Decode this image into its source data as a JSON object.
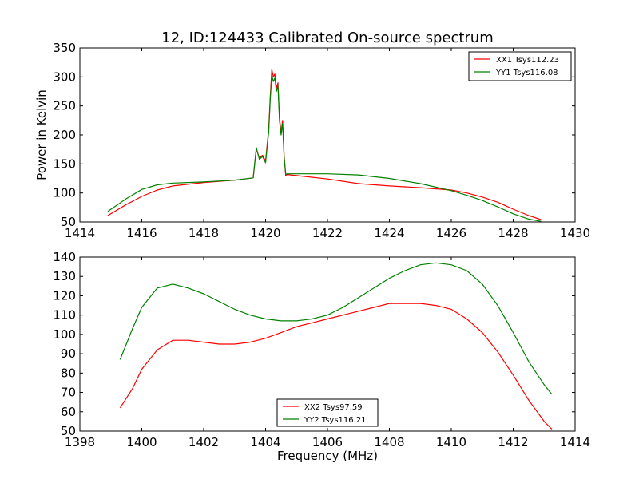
{
  "figure": {
    "title": "12, ID:124433 Calibrated On-source spectrum",
    "xlabel": "Frequency (MHz)",
    "ylabel": "Power in Kelvin"
  },
  "chart_data": [
    {
      "type": "line",
      "title": "12, ID:124433 Calibrated On-source spectrum",
      "xlabel": "",
      "ylabel": "Power in Kelvin",
      "xlim": [
        1414,
        1430
      ],
      "ylim": [
        50,
        350
      ],
      "xticks": [
        1414,
        1416,
        1418,
        1420,
        1422,
        1424,
        1426,
        1428,
        1430
      ],
      "yticks": [
        50,
        100,
        150,
        200,
        250,
        300,
        350
      ],
      "grid": false,
      "legend_position": "top-right",
      "series": [
        {
          "name": "XX1 Tsys112.23",
          "color": "#ff0000",
          "x": [
            1414.9,
            1415.5,
            1416,
            1416.5,
            1417,
            1418,
            1419,
            1419.6,
            1419.7,
            1419.8,
            1419.9,
            1420.0,
            1420.1,
            1420.15,
            1420.2,
            1420.25,
            1420.3,
            1420.35,
            1420.4,
            1420.45,
            1420.5,
            1420.55,
            1420.6,
            1420.65,
            1420.7,
            1420.8,
            1421,
            1422,
            1423,
            1424,
            1425,
            1426,
            1426.5,
            1427,
            1427.5,
            1428,
            1428.5,
            1428.9
          ],
          "y": [
            61,
            80,
            94,
            105,
            112,
            118,
            122,
            126,
            176,
            160,
            165,
            155,
            210,
            265,
            313,
            300,
            305,
            280,
            290,
            230,
            205,
            225,
            165,
            130,
            132,
            131,
            130,
            124,
            116,
            112,
            109,
            105,
            100,
            93,
            84,
            72,
            61,
            54
          ]
        },
        {
          "name": "YY1 Tsys116.08",
          "color": "#008000",
          "x": [
            1414.9,
            1415.5,
            1416,
            1416.5,
            1417,
            1418,
            1419,
            1419.6,
            1419.7,
            1419.8,
            1419.9,
            1420.0,
            1420.1,
            1420.15,
            1420.2,
            1420.25,
            1420.3,
            1420.35,
            1420.4,
            1420.45,
            1420.5,
            1420.55,
            1420.6,
            1420.65,
            1420.7,
            1420.8,
            1421,
            1422,
            1423,
            1424,
            1425,
            1426,
            1426.5,
            1427,
            1427.5,
            1428,
            1428.5,
            1428.9
          ],
          "y": [
            68,
            90,
            106,
            114,
            117,
            119,
            122,
            126,
            178,
            158,
            163,
            152,
            205,
            260,
            303,
            292,
            298,
            275,
            285,
            225,
            200,
            220,
            162,
            132,
            133,
            133,
            133,
            133,
            131,
            125,
            116,
            104,
            96,
            87,
            76,
            64,
            55,
            51
          ]
        }
      ]
    },
    {
      "type": "line",
      "title": "",
      "xlabel": "Frequency (MHz)",
      "ylabel": "",
      "xlim": [
        1398,
        1414
      ],
      "ylim": [
        50,
        140
      ],
      "xticks": [
        1398,
        1400,
        1402,
        1404,
        1406,
        1408,
        1410,
        1412,
        1414
      ],
      "yticks": [
        50,
        60,
        70,
        80,
        90,
        100,
        110,
        120,
        130,
        140
      ],
      "grid": false,
      "legend_position": "bottom-center",
      "series": [
        {
          "name": "XX2 Tsys97.59",
          "color": "#ff0000",
          "x": [
            1399.3,
            1399.7,
            1400.0,
            1400.5,
            1401.0,
            1401.5,
            1402.0,
            1402.5,
            1403.0,
            1403.5,
            1404.0,
            1404.5,
            1405.0,
            1405.5,
            1406.0,
            1406.5,
            1407.0,
            1407.5,
            1408.0,
            1408.5,
            1409.0,
            1409.5,
            1410.0,
            1410.5,
            1411.0,
            1411.5,
            1412.0,
            1412.5,
            1413.0,
            1413.25
          ],
          "y": [
            62,
            72,
            82,
            92,
            97,
            97,
            96,
            95,
            95,
            96,
            98,
            101,
            104,
            106,
            108,
            110,
            112,
            114,
            116,
            116,
            116,
            115,
            113,
            108,
            101,
            91,
            79,
            66,
            55,
            51
          ]
        },
        {
          "name": "YY2 Tsys116.21",
          "color": "#008000",
          "x": [
            1399.3,
            1399.7,
            1400.0,
            1400.5,
            1401.0,
            1401.5,
            1402.0,
            1402.5,
            1403.0,
            1403.5,
            1404.0,
            1404.5,
            1405.0,
            1405.5,
            1406.0,
            1406.5,
            1407.0,
            1407.5,
            1408.0,
            1408.5,
            1409.0,
            1409.5,
            1410.0,
            1410.5,
            1411.0,
            1411.5,
            1412.0,
            1412.5,
            1413.0,
            1413.25
          ],
          "y": [
            87,
            103,
            114,
            124,
            126,
            124,
            121,
            117,
            113,
            110,
            108,
            107,
            107,
            108,
            110,
            114,
            119,
            124,
            129,
            133,
            136,
            137,
            136,
            133,
            126,
            115,
            101,
            86,
            74,
            69
          ]
        }
      ]
    }
  ]
}
